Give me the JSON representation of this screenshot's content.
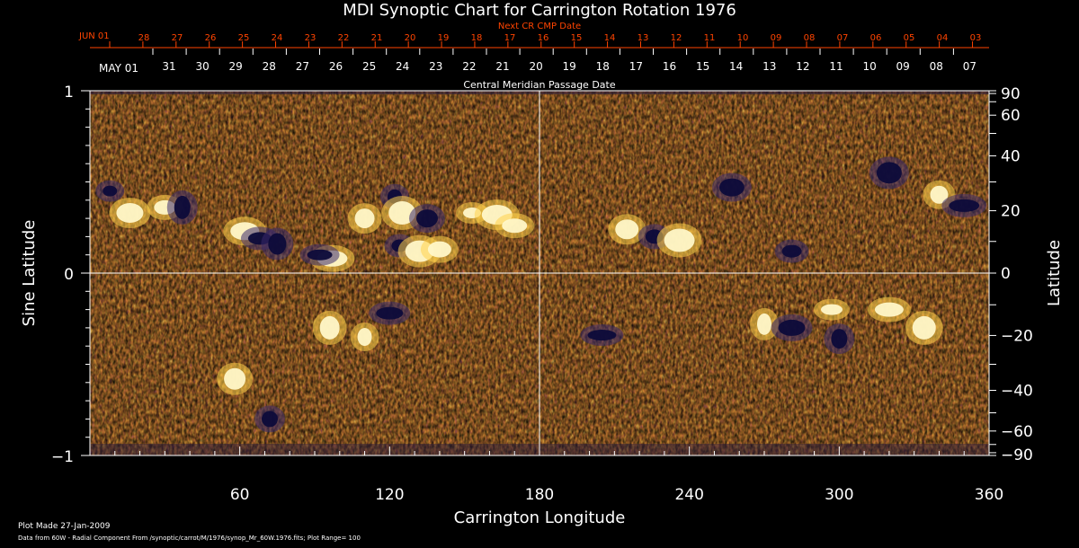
{
  "chart_data": {
    "type": "heatmap",
    "title": "MDI Synoptic Chart for Carrington Rotation 1976",
    "top_axis": {
      "label": "Next CR CMP Date",
      "month_label": "JUN 01",
      "date_labels": [
        "28",
        "27",
        "26",
        "25",
        "24",
        "23",
        "22",
        "21",
        "20",
        "19",
        "18",
        "17",
        "16",
        "15",
        "14",
        "13",
        "12",
        "11",
        "10",
        "09",
        "08",
        "07",
        "06",
        "05",
        "04",
        "03"
      ],
      "color": "#ff4400"
    },
    "mid_axis": {
      "label": "Central Meridian Passage Date",
      "month_label": "MAY 01",
      "date_labels": [
        "31",
        "30",
        "29",
        "28",
        "27",
        "26",
        "25",
        "24",
        "23",
        "22",
        "21",
        "20",
        "19",
        "18",
        "17",
        "16",
        "15",
        "14",
        "13",
        "12",
        "11",
        "10",
        "09",
        "08",
        "07"
      ]
    },
    "xlabel": "Carrington Longitude",
    "x_range": [
      0,
      360
    ],
    "x_ticks": [
      "60",
      "120",
      "180",
      "240",
      "300",
      "360"
    ],
    "x_tick_values": [
      60,
      120,
      180,
      240,
      300,
      360
    ],
    "ylabel_left": "Sine Latitude",
    "y_range_left": [
      -1,
      1
    ],
    "y_ticks_left": [
      "1",
      "0",
      "−1"
    ],
    "y_tick_values_left": [
      1,
      0,
      -1
    ],
    "ylabel_right": "Latitude",
    "y_ticks_right": [
      "90",
      "60",
      "40",
      "20",
      "0",
      "−20",
      "−40",
      "−60",
      "−90"
    ],
    "y_tick_values_right": [
      90,
      60,
      40,
      20,
      0,
      -20,
      -40,
      -60,
      -90
    ],
    "colorscale": {
      "low": "#14124d",
      "mid": "#d7421c",
      "high": "#ffffcc"
    },
    "plot_range": 100,
    "active_regions": [
      {
        "lon": 8,
        "sinlat": 0.45,
        "polarity": "neg"
      },
      {
        "lon": 16,
        "sinlat": 0.33,
        "polarity": "pos"
      },
      {
        "lon": 30,
        "sinlat": 0.36,
        "polarity": "pos"
      },
      {
        "lon": 37,
        "sinlat": 0.36,
        "polarity": "neg"
      },
      {
        "lon": 62,
        "sinlat": 0.23,
        "polarity": "pos"
      },
      {
        "lon": 68,
        "sinlat": 0.19,
        "polarity": "neg"
      },
      {
        "lon": 75,
        "sinlat": 0.16,
        "polarity": "neg"
      },
      {
        "lon": 97,
        "sinlat": 0.08,
        "polarity": "pos"
      },
      {
        "lon": 92,
        "sinlat": 0.1,
        "polarity": "neg"
      },
      {
        "lon": 110,
        "sinlat": 0.3,
        "polarity": "pos"
      },
      {
        "lon": 122,
        "sinlat": 0.42,
        "polarity": "neg"
      },
      {
        "lon": 125,
        "sinlat": 0.33,
        "polarity": "pos"
      },
      {
        "lon": 135,
        "sinlat": 0.3,
        "polarity": "neg"
      },
      {
        "lon": 124,
        "sinlat": 0.15,
        "polarity": "neg"
      },
      {
        "lon": 132,
        "sinlat": 0.12,
        "polarity": "pos"
      },
      {
        "lon": 140,
        "sinlat": 0.13,
        "polarity": "pos"
      },
      {
        "lon": 153,
        "sinlat": 0.33,
        "polarity": "pos"
      },
      {
        "lon": 163,
        "sinlat": 0.32,
        "polarity": "pos"
      },
      {
        "lon": 170,
        "sinlat": 0.26,
        "polarity": "pos"
      },
      {
        "lon": 96,
        "sinlat": -0.3,
        "polarity": "pos"
      },
      {
        "lon": 110,
        "sinlat": -0.35,
        "polarity": "pos"
      },
      {
        "lon": 120,
        "sinlat": -0.22,
        "polarity": "neg"
      },
      {
        "lon": 58,
        "sinlat": -0.58,
        "polarity": "pos"
      },
      {
        "lon": 72,
        "sinlat": -0.8,
        "polarity": "neg"
      },
      {
        "lon": 205,
        "sinlat": -0.34,
        "polarity": "neg"
      },
      {
        "lon": 215,
        "sinlat": 0.24,
        "polarity": "pos"
      },
      {
        "lon": 226,
        "sinlat": 0.2,
        "polarity": "neg"
      },
      {
        "lon": 236,
        "sinlat": 0.18,
        "polarity": "pos"
      },
      {
        "lon": 257,
        "sinlat": 0.47,
        "polarity": "neg"
      },
      {
        "lon": 281,
        "sinlat": 0.12,
        "polarity": "neg"
      },
      {
        "lon": 270,
        "sinlat": -0.28,
        "polarity": "pos"
      },
      {
        "lon": 281,
        "sinlat": -0.3,
        "polarity": "neg"
      },
      {
        "lon": 297,
        "sinlat": -0.2,
        "polarity": "pos"
      },
      {
        "lon": 300,
        "sinlat": -0.36,
        "polarity": "neg"
      },
      {
        "lon": 320,
        "sinlat": -0.2,
        "polarity": "pos"
      },
      {
        "lon": 334,
        "sinlat": -0.3,
        "polarity": "pos"
      },
      {
        "lon": 340,
        "sinlat": 0.43,
        "polarity": "pos"
      },
      {
        "lon": 350,
        "sinlat": 0.37,
        "polarity": "neg"
      },
      {
        "lon": 320,
        "sinlat": 0.55,
        "polarity": "neg"
      }
    ]
  },
  "footer": {
    "plot_made": "Plot Made 27-Jan-2009",
    "data_source": "Data from 60W - Radial Component From /synoptic/carrot/M/1976/synop_Mr_60W.1976.fits; Plot Range= 100"
  }
}
